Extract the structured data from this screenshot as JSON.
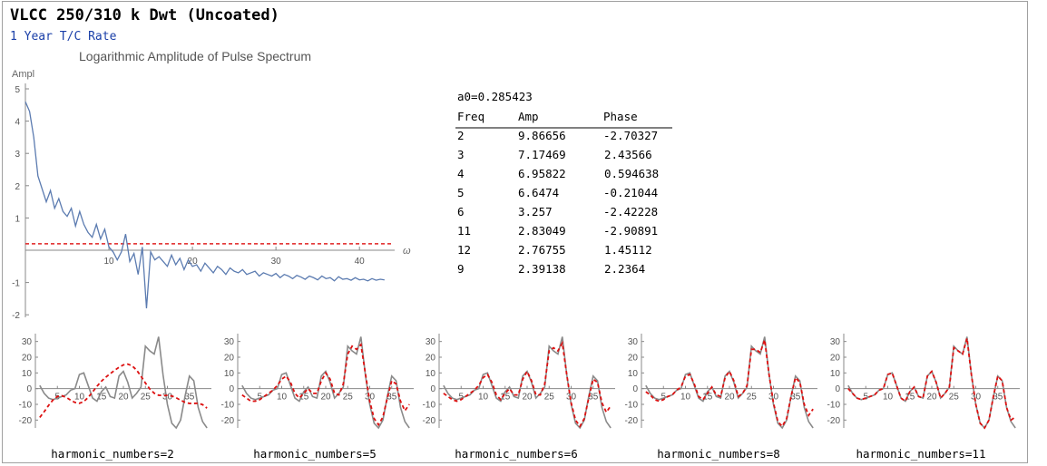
{
  "header": {
    "title": "VLCC 250/310 k Dwt (Uncoated)",
    "subtitle": "1 Year T/C Rate"
  },
  "chart_data": [
    {
      "type": "line",
      "title": "Logarithmic Amplitude of Pulse Spectrum",
      "ylabel": "Ampl",
      "xlabel": "ω",
      "xlim": [
        0,
        44
      ],
      "ylim": [
        -2,
        5
      ],
      "xticks": [
        10,
        20,
        30,
        40
      ],
      "yticks": [
        -2,
        -1,
        1,
        2,
        3,
        4,
        5
      ],
      "threshold": 0.2,
      "x": [
        0,
        0.5,
        1,
        1.5,
        2,
        2.5,
        3,
        3.5,
        4,
        4.5,
        5,
        5.5,
        6,
        6.5,
        7,
        7.5,
        8,
        8.5,
        9,
        9.5,
        10,
        10.5,
        11,
        11.5,
        12,
        12.5,
        13,
        13.5,
        14,
        14.5,
        15,
        15.5,
        16,
        16.5,
        17,
        17.5,
        18,
        18.5,
        19,
        19.5,
        20,
        20.5,
        21,
        21.5,
        22,
        22.5,
        23,
        23.5,
        24,
        24.5,
        25,
        25.5,
        26,
        26.5,
        27,
        27.5,
        28,
        28.5,
        29,
        29.5,
        30,
        30.5,
        31,
        31.5,
        32,
        32.5,
        33,
        33.5,
        34,
        34.5,
        35,
        35.5,
        36,
        36.5,
        37,
        37.5,
        38,
        38.5,
        39,
        39.5,
        40,
        40.5,
        41,
        41.5,
        42,
        42.5,
        43
      ],
      "values": [
        4.6,
        4.3,
        3.5,
        2.3,
        1.9,
        1.5,
        1.85,
        1.3,
        1.6,
        1.2,
        1.05,
        1.3,
        0.75,
        1.2,
        0.8,
        0.55,
        0.4,
        0.8,
        0.35,
        0.65,
        0.1,
        -0.05,
        -0.3,
        -0.05,
        0.5,
        -0.35,
        -0.1,
        -0.75,
        0.1,
        -1.8,
        -0.05,
        -0.3,
        -0.2,
        -0.35,
        -0.5,
        -0.15,
        -0.45,
        -0.25,
        -0.6,
        -0.3,
        -0.5,
        -0.45,
        -0.65,
        -0.4,
        -0.55,
        -0.7,
        -0.5,
        -0.6,
        -0.75,
        -0.55,
        -0.65,
        -0.7,
        -0.6,
        -0.75,
        -0.7,
        -0.65,
        -0.8,
        -0.7,
        -0.75,
        -0.8,
        -0.72,
        -0.85,
        -0.75,
        -0.8,
        -0.88,
        -0.78,
        -0.83,
        -0.9,
        -0.8,
        -0.85,
        -0.92,
        -0.8,
        -0.88,
        -0.85,
        -0.95,
        -0.82,
        -0.9,
        -0.88,
        -0.93,
        -0.85,
        -0.92,
        -0.9,
        -0.95,
        -0.88,
        -0.93,
        -0.9,
        -0.92
      ]
    },
    {
      "type": "table",
      "header_note": "a0=0.285423",
      "columns": [
        "Freq",
        "Amp",
        "Phase"
      ],
      "rows": [
        [
          "2",
          "9.86656",
          "-2.70327"
        ],
        [
          "3",
          "7.17469",
          "2.43566"
        ],
        [
          "4",
          "6.95822",
          "0.594638"
        ],
        [
          "5",
          "6.6474",
          "-0.21044"
        ],
        [
          "6",
          "3.257",
          "-2.42228"
        ],
        [
          "11",
          "2.83049",
          "-2.90891"
        ],
        [
          "12",
          "2.76755",
          "1.45112"
        ],
        [
          "9",
          "2.39138",
          "2.2364"
        ]
      ]
    },
    {
      "type": "line",
      "xlabel": "harmonic_numbers=2",
      "xlim": [
        0,
        40
      ],
      "ylim": [
        -25,
        35
      ],
      "xticks": [
        5,
        10,
        15,
        20,
        25,
        30,
        35
      ],
      "yticks": [
        -20,
        -10,
        0,
        10,
        20,
        30
      ],
      "series": [
        {
          "role": "original",
          "x": [
            1,
            2,
            3,
            4,
            5,
            6,
            7,
            8,
            9,
            10,
            11,
            12,
            13,
            14,
            15,
            16,
            17,
            18,
            19,
            20,
            21,
            22,
            23,
            24,
            25,
            26,
            27,
            28,
            29,
            30,
            31,
            32,
            33,
            34,
            35,
            36,
            37,
            38,
            39
          ],
          "values": [
            2,
            -3,
            -6,
            -7,
            -6,
            -5,
            -4,
            -1,
            0,
            9,
            10,
            2,
            -6,
            -8,
            -2,
            1,
            -5,
            -6,
            8,
            11,
            4,
            -6,
            -3,
            1,
            27,
            24,
            22,
            33,
            9,
            -10,
            -22,
            -25,
            -20,
            -5,
            8,
            5,
            -12,
            -21,
            -25
          ]
        },
        {
          "role": "fit",
          "x": [
            1,
            2,
            3,
            4,
            5,
            6,
            7,
            8,
            9,
            10,
            11,
            12,
            13,
            14,
            15,
            16,
            17,
            18,
            19,
            20,
            21,
            22,
            23,
            24,
            25,
            26,
            27,
            28,
            29,
            30,
            31,
            32,
            33,
            34,
            35,
            36,
            37,
            38,
            39
          ],
          "values": [
            -18.3,
            -14.7,
            -10.7,
            -7.2,
            -5.0,
            -4.5,
            -5.5,
            -7.3,
            -8.8,
            -9.3,
            -8.2,
            -5.6,
            -2.1,
            1.5,
            4.7,
            7.3,
            9.5,
            11.6,
            13.6,
            15.1,
            15.6,
            14.5,
            11.8,
            7.9,
            3.6,
            -0.2,
            -2.9,
            -4.2,
            -4.4,
            -4.3,
            -4.7,
            -5.8,
            -7.4,
            -8.7,
            -9.4,
            -9.4,
            -9.3,
            -10.2,
            -12.4
          ]
        }
      ]
    },
    {
      "type": "line",
      "xlabel": "harmonic_numbers=5",
      "xlim": [
        0,
        40
      ],
      "ylim": [
        -25,
        35
      ],
      "xticks": [
        5,
        10,
        15,
        20,
        25,
        30,
        35
      ],
      "yticks": [
        -20,
        -10,
        0,
        10,
        20,
        30
      ],
      "series": [
        {
          "role": "original",
          "x": [
            1,
            2,
            3,
            4,
            5,
            6,
            7,
            8,
            9,
            10,
            11,
            12,
            13,
            14,
            15,
            16,
            17,
            18,
            19,
            20,
            21,
            22,
            23,
            24,
            25,
            26,
            27,
            28,
            29,
            30,
            31,
            32,
            33,
            34,
            35,
            36,
            37,
            38,
            39
          ],
          "values": [
            2,
            -3,
            -6,
            -7,
            -6,
            -5,
            -4,
            -1,
            0,
            9,
            10,
            2,
            -6,
            -8,
            -2,
            1,
            -5,
            -6,
            8,
            11,
            4,
            -6,
            -3,
            1,
            27,
            24,
            22,
            33,
            9,
            -10,
            -22,
            -25,
            -20,
            -5,
            8,
            5,
            -12,
            -21,
            -25
          ]
        },
        {
          "role": "fit",
          "x": [
            1,
            2,
            3,
            4,
            5,
            6,
            7,
            8,
            9,
            10,
            11,
            12,
            13,
            14,
            15,
            16,
            17,
            18,
            19,
            20,
            21,
            22,
            23,
            24,
            25,
            26,
            27,
            28,
            29,
            30,
            31,
            32,
            33,
            34,
            35,
            36,
            37,
            38,
            39
          ],
          "values": [
            -4,
            -6,
            -8,
            -8,
            -7,
            -5,
            -3,
            -1,
            2,
            6,
            8,
            4,
            -3,
            -6,
            -3,
            0,
            -3,
            -3,
            5,
            10,
            6,
            -3,
            -4,
            3,
            22,
            27,
            25,
            28,
            10,
            -8,
            -19,
            -23,
            -18,
            -6,
            5,
            3,
            -8,
            -14,
            -10
          ]
        }
      ]
    },
    {
      "type": "line",
      "xlabel": "harmonic_numbers=6",
      "xlim": [
        0,
        40
      ],
      "ylim": [
        -25,
        35
      ],
      "xticks": [
        5,
        10,
        15,
        20,
        25,
        30,
        35
      ],
      "yticks": [
        -20,
        -10,
        0,
        10,
        20,
        30
      ],
      "series": [
        {
          "role": "original",
          "x": [
            1,
            2,
            3,
            4,
            5,
            6,
            7,
            8,
            9,
            10,
            11,
            12,
            13,
            14,
            15,
            16,
            17,
            18,
            19,
            20,
            21,
            22,
            23,
            24,
            25,
            26,
            27,
            28,
            29,
            30,
            31,
            32,
            33,
            34,
            35,
            36,
            37,
            38,
            39
          ],
          "values": [
            2,
            -3,
            -6,
            -7,
            -6,
            -5,
            -4,
            -1,
            0,
            9,
            10,
            2,
            -6,
            -8,
            -2,
            1,
            -5,
            -6,
            8,
            11,
            4,
            -6,
            -3,
            1,
            27,
            24,
            22,
            33,
            9,
            -10,
            -22,
            -25,
            -20,
            -5,
            8,
            5,
            -12,
            -21,
            -25
          ]
        },
        {
          "role": "fit",
          "x": [
            1,
            2,
            3,
            4,
            5,
            6,
            7,
            8,
            9,
            10,
            11,
            12,
            13,
            14,
            15,
            16,
            17,
            18,
            19,
            20,
            21,
            22,
            23,
            24,
            25,
            26,
            27,
            28,
            29,
            30,
            31,
            32,
            33,
            34,
            35,
            36,
            37,
            38,
            39
          ],
          "values": [
            -3,
            -5,
            -7,
            -8,
            -7,
            -5,
            -3,
            -1,
            2,
            7,
            9,
            4,
            -4,
            -7,
            -3,
            0,
            -4,
            -4,
            6,
            11,
            5,
            -4,
            -4,
            3,
            24,
            26,
            24,
            29,
            9,
            -9,
            -20,
            -24,
            -19,
            -6,
            6,
            4,
            -9,
            -15,
            -11
          ]
        }
      ]
    },
    {
      "type": "line",
      "xlabel": "harmonic_numbers=8",
      "xlim": [
        0,
        40
      ],
      "ylim": [
        -25,
        35
      ],
      "xticks": [
        5,
        10,
        15,
        20,
        25,
        30,
        35
      ],
      "yticks": [
        -20,
        -10,
        0,
        10,
        20,
        30
      ],
      "series": [
        {
          "role": "original",
          "x": [
            1,
            2,
            3,
            4,
            5,
            6,
            7,
            8,
            9,
            10,
            11,
            12,
            13,
            14,
            15,
            16,
            17,
            18,
            19,
            20,
            21,
            22,
            23,
            24,
            25,
            26,
            27,
            28,
            29,
            30,
            31,
            32,
            33,
            34,
            35,
            36,
            37,
            38,
            39
          ],
          "values": [
            2,
            -3,
            -6,
            -7,
            -6,
            -5,
            -4,
            -1,
            0,
            9,
            10,
            2,
            -6,
            -8,
            -2,
            1,
            -5,
            -6,
            8,
            11,
            4,
            -6,
            -3,
            1,
            27,
            24,
            22,
            33,
            9,
            -10,
            -22,
            -25,
            -20,
            -5,
            8,
            5,
            -12,
            -21,
            -25
          ]
        },
        {
          "role": "fit",
          "x": [
            1,
            2,
            3,
            4,
            5,
            6,
            7,
            8,
            9,
            10,
            11,
            12,
            13,
            14,
            15,
            16,
            17,
            18,
            19,
            20,
            21,
            22,
            23,
            24,
            25,
            26,
            27,
            28,
            29,
            30,
            31,
            32,
            33,
            34,
            35,
            36,
            37,
            38,
            39
          ],
          "values": [
            -2,
            -4,
            -7,
            -8,
            -7,
            -5,
            -4,
            -1,
            1,
            8,
            9,
            3,
            -5,
            -7,
            -3,
            1,
            -4,
            -5,
            7,
            11,
            5,
            -5,
            -3,
            2,
            25,
            25,
            23,
            31,
            9,
            -9,
            -21,
            -24,
            -19,
            -5,
            7,
            4,
            -10,
            -17,
            -13
          ]
        }
      ]
    },
    {
      "type": "line",
      "xlabel": "harmonic_numbers=11",
      "xlim": [
        0,
        40
      ],
      "ylim": [
        -25,
        35
      ],
      "xticks": [
        5,
        10,
        15,
        20,
        25,
        30,
        35
      ],
      "yticks": [
        -20,
        -10,
        0,
        10,
        20,
        30
      ],
      "series": [
        {
          "role": "original",
          "x": [
            1,
            2,
            3,
            4,
            5,
            6,
            7,
            8,
            9,
            10,
            11,
            12,
            13,
            14,
            15,
            16,
            17,
            18,
            19,
            20,
            21,
            22,
            23,
            24,
            25,
            26,
            27,
            28,
            29,
            30,
            31,
            32,
            33,
            34,
            35,
            36,
            37,
            38,
            39
          ],
          "values": [
            2,
            -3,
            -6,
            -7,
            -6,
            -5,
            -4,
            -1,
            0,
            9,
            10,
            2,
            -6,
            -8,
            -2,
            1,
            -5,
            -6,
            8,
            11,
            4,
            -6,
            -3,
            1,
            27,
            24,
            22,
            33,
            9,
            -10,
            -22,
            -25,
            -20,
            -5,
            8,
            5,
            -12,
            -21,
            -25
          ]
        },
        {
          "role": "fit",
          "x": [
            1,
            2,
            3,
            4,
            5,
            6,
            7,
            8,
            9,
            10,
            11,
            12,
            13,
            14,
            15,
            16,
            17,
            18,
            19,
            20,
            21,
            22,
            23,
            24,
            25,
            26,
            27,
            28,
            29,
            30,
            31,
            32,
            33,
            34,
            35,
            36,
            37,
            38,
            39
          ],
          "values": [
            0,
            -3,
            -6,
            -7,
            -6,
            -5,
            -4,
            -1,
            0,
            9,
            10,
            2,
            -6,
            -8,
            -2,
            1,
            -5,
            -6,
            8,
            11,
            4,
            -6,
            -3,
            1,
            26,
            24,
            22,
            32,
            9,
            -10,
            -22,
            -25,
            -20,
            -5,
            8,
            5,
            -12,
            -20,
            -18
          ]
        }
      ]
    }
  ],
  "colors": {
    "spectrum_line": "#5b7bb0",
    "threshold_line": "#e02020",
    "original_series": "#8a8a8a",
    "fit_series": "#dd1111",
    "tick_label": "#555555",
    "subtitle": "#1a3fa8"
  }
}
